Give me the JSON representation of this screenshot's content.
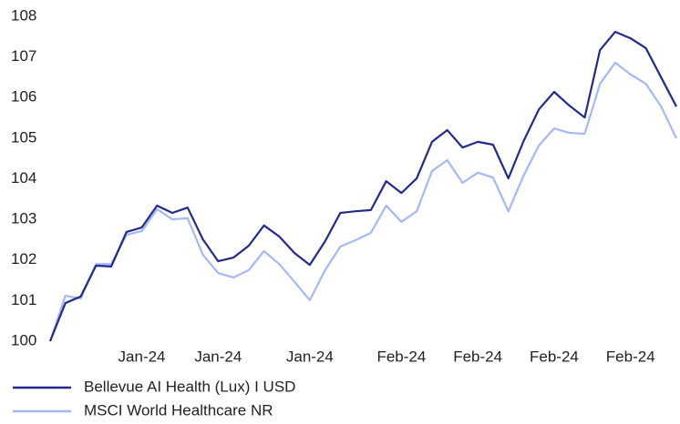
{
  "chart_data": {
    "type": "line",
    "categories": [
      null,
      null,
      null,
      null,
      null,
      null,
      "Jan-24",
      null,
      null,
      null,
      null,
      "Jan-24",
      null,
      null,
      null,
      null,
      null,
      "Jan-24",
      null,
      null,
      null,
      null,
      null,
      "Feb-24",
      null,
      null,
      null,
      null,
      "Feb-24",
      null,
      null,
      null,
      null,
      "Feb-24",
      null,
      null,
      null,
      null,
      "Feb-24",
      null,
      null,
      null
    ],
    "series": [
      {
        "name": "Bellevue AI Health (Lux) I USD",
        "color": "#232a8c",
        "values": [
          100,
          100.94,
          101.1,
          101.86,
          101.84,
          102.69,
          102.8,
          103.34,
          103.16,
          103.29,
          102.51,
          101.97,
          102.06,
          102.35,
          102.85,
          102.58,
          102.17,
          101.88,
          102.46,
          103.16,
          103.2,
          103.23,
          103.94,
          103.65,
          104.01,
          104.91,
          105.2,
          104.77,
          104.91,
          104.84,
          104.01,
          104.93,
          105.71,
          106.14,
          105.8,
          105.51,
          107.17,
          107.62,
          107.46,
          107.22,
          106.5,
          105.78
        ]
      },
      {
        "name": "MSCI World Healthcare NR",
        "color": "#a4b8f5",
        "values": [
          100,
          101.12,
          101.05,
          101.9,
          101.9,
          102.62,
          102.71,
          103.25,
          103.0,
          103.03,
          102.13,
          101.68,
          101.57,
          101.75,
          102.22,
          101.9,
          101.46,
          101.01,
          101.75,
          102.33,
          102.49,
          102.67,
          103.34,
          102.94,
          103.2,
          104.19,
          104.46,
          103.9,
          104.15,
          104.03,
          103.2,
          104.08,
          104.82,
          105.24,
          105.13,
          105.11,
          106.34,
          106.86,
          106.57,
          106.34,
          105.78,
          105.0
        ]
      }
    ],
    "ylim": [
      100,
      108
    ],
    "yticks": [
      100,
      101,
      102,
      103,
      104,
      105,
      106,
      107,
      108
    ],
    "grid": false
  }
}
